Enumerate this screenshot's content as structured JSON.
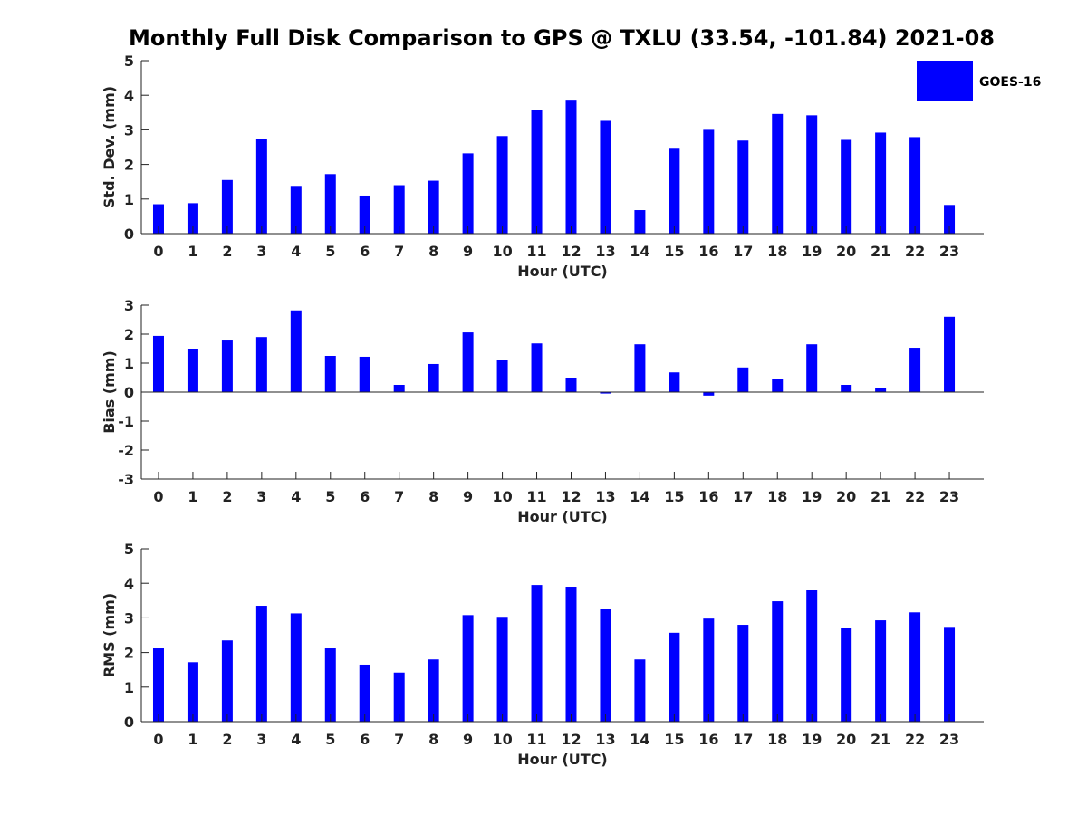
{
  "title": "Monthly Full Disk Comparison to GPS @ TXLU (33.54, -101.84) 2021-08",
  "colors": {
    "bar": "#0000ff",
    "axis": "#222222"
  },
  "legend": {
    "label": "GOES-16"
  },
  "chart_data": [
    {
      "type": "bar",
      "title": "Monthly Full Disk Comparison to GPS @ TXLU (33.54, -101.84) 2021-08",
      "xlabel": "Hour (UTC)",
      "ylabel": "Std. Dev. (mm)",
      "ylim": [
        0,
        5
      ],
      "yticks": [
        0,
        1,
        2,
        3,
        4,
        5
      ],
      "categories": [
        "0",
        "1",
        "2",
        "3",
        "4",
        "5",
        "6",
        "7",
        "8",
        "9",
        "10",
        "11",
        "12",
        "13",
        "14",
        "15",
        "16",
        "17",
        "18",
        "19",
        "20",
        "21",
        "22",
        "23"
      ],
      "series": [
        {
          "name": "GOES-16",
          "values": [
            0.85,
            0.88,
            1.55,
            2.73,
            1.38,
            1.72,
            1.1,
            1.4,
            1.53,
            2.32,
            2.82,
            3.57,
            3.87,
            3.26,
            0.68,
            2.48,
            3.0,
            2.69,
            3.46,
            3.42,
            2.71,
            2.92,
            2.79,
            0.83
          ]
        }
      ]
    },
    {
      "type": "bar",
      "xlabel": "Hour (UTC)",
      "ylabel": "Bias (mm)",
      "ylim": [
        -3,
        3
      ],
      "yticks": [
        -3,
        -2,
        -1,
        0,
        1,
        2,
        3
      ],
      "categories": [
        "0",
        "1",
        "2",
        "3",
        "4",
        "5",
        "6",
        "7",
        "8",
        "9",
        "10",
        "11",
        "12",
        "13",
        "14",
        "15",
        "16",
        "17",
        "18",
        "19",
        "20",
        "21",
        "22",
        "23"
      ],
      "series": [
        {
          "name": "GOES-16",
          "values": [
            1.94,
            1.5,
            1.78,
            1.9,
            2.82,
            1.25,
            1.22,
            0.25,
            0.97,
            2.06,
            1.12,
            1.68,
            0.5,
            -0.05,
            1.65,
            0.68,
            -0.12,
            0.85,
            0.44,
            1.65,
            0.25,
            0.15,
            1.53,
            2.6
          ]
        }
      ]
    },
    {
      "type": "bar",
      "xlabel": "Hour (UTC)",
      "ylabel": "RMS (mm)",
      "ylim": [
        0,
        5
      ],
      "yticks": [
        0,
        1,
        2,
        3,
        4,
        5
      ],
      "categories": [
        "0",
        "1",
        "2",
        "3",
        "4",
        "5",
        "6",
        "7",
        "8",
        "9",
        "10",
        "11",
        "12",
        "13",
        "14",
        "15",
        "16",
        "17",
        "18",
        "19",
        "20",
        "21",
        "22",
        "23"
      ],
      "series": [
        {
          "name": "GOES-16",
          "values": [
            2.12,
            1.72,
            2.35,
            3.35,
            3.13,
            2.12,
            1.65,
            1.42,
            1.8,
            3.08,
            3.03,
            3.95,
            3.9,
            3.27,
            1.8,
            2.57,
            2.98,
            2.8,
            3.48,
            3.82,
            2.72,
            2.93,
            3.16,
            2.74
          ]
        }
      ]
    }
  ]
}
